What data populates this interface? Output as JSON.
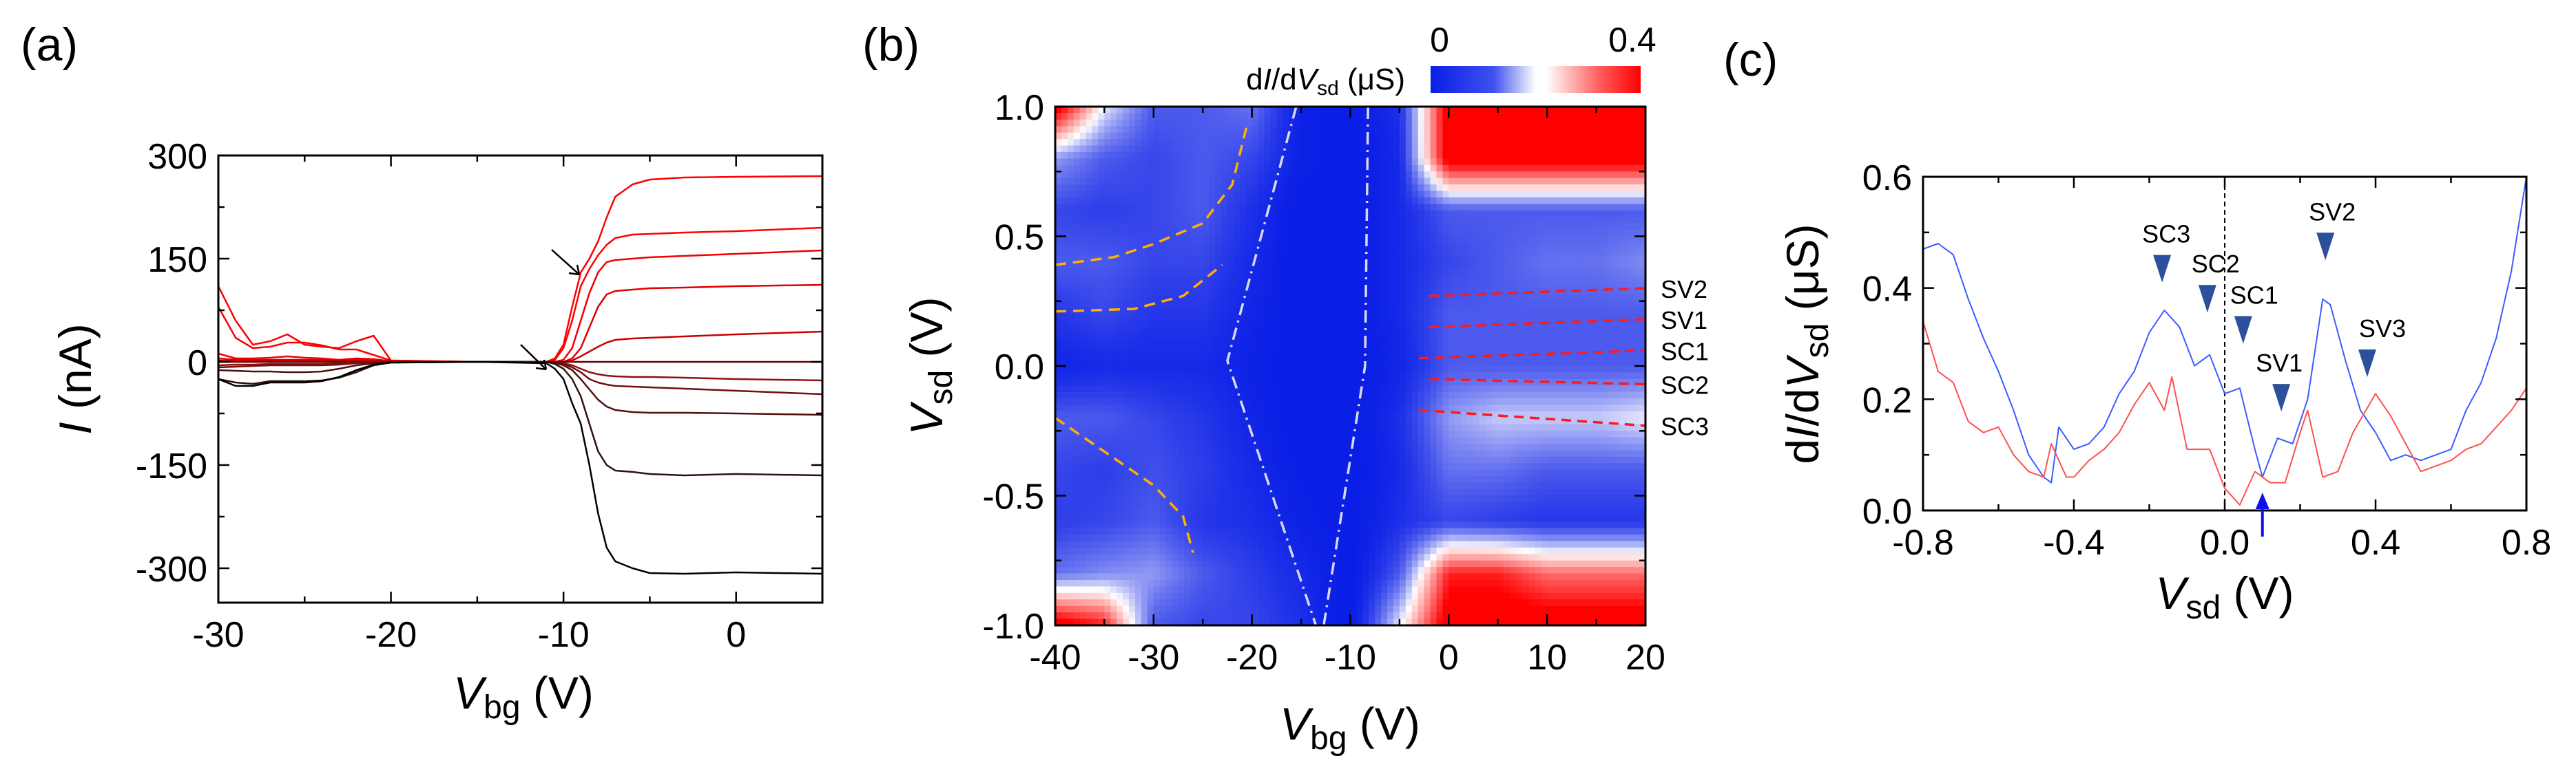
{
  "chart_data": [
    {
      "panel_label": "(a)",
      "type": "line",
      "xlabel": {
        "main": "V",
        "sub": "bg",
        "unit": " (V)"
      },
      "ylabel": {
        "main": "I",
        "unit": " (nA)"
      },
      "xlim": [
        -30,
        5
      ],
      "ylim": [
        -350,
        300
      ],
      "xticks": [
        -30,
        -20,
        -10,
        0
      ],
      "xtick_labels": [
        "-30",
        "-20",
        "-10",
        "0"
      ],
      "yticks": [
        -300,
        -150,
        0,
        150,
        300
      ],
      "ytick_labels": [
        "-300",
        "-150",
        "0",
        "150",
        "300"
      ],
      "x": [
        -30,
        -29,
        -28,
        -27,
        -26,
        -25,
        -24,
        -23,
        -22,
        -21,
        -20,
        -15,
        -11,
        -10.5,
        -10,
        -9.5,
        -9,
        -8.5,
        -8,
        -7.5,
        -7,
        -6,
        -5,
        -3,
        0,
        5
      ],
      "series": [
        {
          "name": "trace-1",
          "color": "#ff0000",
          "values": [
            110,
            60,
            25,
            30,
            40,
            25,
            22,
            20,
            30,
            38,
            2,
            0,
            0,
            5,
            25,
            80,
            130,
            150,
            175,
            210,
            240,
            258,
            265,
            268,
            269,
            270
          ]
        },
        {
          "name": "trace-2",
          "color": "#ff0000",
          "values": [
            80,
            35,
            20,
            22,
            28,
            28,
            24,
            18,
            18,
            10,
            2,
            0,
            0,
            3,
            20,
            60,
            110,
            135,
            155,
            170,
            180,
            185,
            186,
            188,
            190,
            195
          ]
        },
        {
          "name": "trace-3",
          "color": "#f00000",
          "values": [
            12,
            5,
            5,
            6,
            8,
            6,
            5,
            3,
            5,
            4,
            1,
            0,
            0,
            0,
            3,
            20,
            60,
            100,
            130,
            145,
            148,
            150,
            152,
            154,
            157,
            162
          ]
        },
        {
          "name": "trace-4",
          "color": "#e00000",
          "values": [
            5,
            3,
            3,
            3,
            3,
            3,
            3,
            2,
            3,
            2,
            1,
            0,
            0,
            0,
            0,
            5,
            20,
            50,
            80,
            98,
            103,
            105,
            107,
            108,
            110,
            112
          ]
        },
        {
          "name": "trace-5",
          "color": "#c80000",
          "values": [
            2,
            1,
            1,
            1,
            1,
            1,
            1,
            1,
            1,
            1,
            0,
            0,
            0,
            0,
            0,
            2,
            8,
            15,
            22,
            28,
            32,
            34,
            35,
            37,
            40,
            44
          ]
        },
        {
          "name": "trace-6",
          "color": "#600000",
          "values": [
            0,
            0,
            0,
            0,
            0,
            0,
            0,
            0,
            0,
            0,
            0,
            0,
            0,
            0,
            0,
            0,
            0,
            0,
            0,
            0,
            0,
            0,
            0,
            0,
            0,
            0
          ]
        },
        {
          "name": "trace-7",
          "color": "#901010",
          "values": [
            -5,
            -4,
            -4,
            -3,
            -3,
            -3,
            -3,
            -2,
            -1,
            0,
            0,
            0,
            0,
            0,
            -2,
            -5,
            -10,
            -15,
            -18,
            -20,
            -21,
            -22,
            -22,
            -23,
            -25,
            -27
          ]
        },
        {
          "name": "trace-8",
          "color": "#701010",
          "values": [
            -8,
            -7,
            -6,
            -5,
            -5,
            -5,
            -5,
            -4,
            -2,
            -1,
            0,
            0,
            0,
            0,
            -3,
            -8,
            -15,
            -25,
            -30,
            -33,
            -35,
            -36,
            -37,
            -39,
            -42,
            -47
          ]
        },
        {
          "name": "trace-9",
          "color": "#501010",
          "values": [
            -12,
            -13,
            -14,
            -14,
            -15,
            -15,
            -14,
            -10,
            -5,
            -2,
            0,
            0,
            0,
            -1,
            -5,
            -12,
            -25,
            -40,
            -55,
            -65,
            -70,
            -73,
            -74,
            -74,
            -75,
            -77
          ]
        },
        {
          "name": "trace-10",
          "color": "#301010",
          "values": [
            -25,
            -30,
            -32,
            -28,
            -28,
            -28,
            -27,
            -23,
            -15,
            -5,
            -1,
            0,
            0,
            -3,
            -10,
            -25,
            -50,
            -90,
            -130,
            -150,
            -158,
            -160,
            -163,
            -165,
            -163,
            -165
          ]
        },
        {
          "name": "trace-11",
          "color": "#000000",
          "values": [
            -25,
            -35,
            -35,
            -30,
            -30,
            -30,
            -28,
            -22,
            -12,
            -4,
            -1,
            0,
            -2,
            -10,
            -25,
            -60,
            -90,
            -150,
            -220,
            -270,
            -290,
            -300,
            -307,
            -308,
            -306,
            -308
          ]
        }
      ]
    },
    {
      "panel_label": "(b)",
      "type": "heatmap",
      "xlabel": {
        "main": "V",
        "sub": "bg",
        "unit": " (V)"
      },
      "ylabel": {
        "main": "V",
        "sub": "sd",
        "unit": " (V)"
      },
      "xlim": [
        -40,
        20
      ],
      "ylim": [
        -1.0,
        1.0
      ],
      "xticks": [
        -40,
        -30,
        -20,
        -10,
        0,
        10,
        20
      ],
      "xtick_labels": [
        "-40",
        "-30",
        "-20",
        "-10",
        "0",
        "10",
        "20"
      ],
      "yticks": [
        -1.0,
        -0.5,
        0.0,
        0.5,
        1.0
      ],
      "ytick_labels": [
        "-1.0",
        "-0.5",
        "0.0",
        "0.5",
        "1.0"
      ],
      "colorbar": {
        "label_pre": "d",
        "label_i": "I",
        "label_mid": "/d",
        "label_v": "V",
        "label_sub": "sd",
        "label_unit": " (μS)",
        "min_label": "0",
        "max_label": "0.4",
        "range": [
          0,
          0.4
        ],
        "colors": [
          "#0a1ee6",
          "#ffffff",
          "#ff0000"
        ]
      },
      "x": [
        -40,
        -35,
        -30,
        -25,
        -20,
        -15,
        -10,
        -5,
        0,
        5,
        10,
        15,
        20
      ],
      "y": [
        1.0,
        0.8,
        0.6,
        0.4,
        0.2,
        0.0,
        -0.2,
        -0.4,
        -0.6,
        -0.8,
        -1.0
      ],
      "z": [
        [
          0.4,
          0.2,
          0.1,
          0.1,
          0.12,
          0.02,
          0,
          0.05,
          0.4,
          0.4,
          0.4,
          0.4,
          0.4
        ],
        [
          0.15,
          0.1,
          0.08,
          0.1,
          0.08,
          0.02,
          0,
          0.04,
          0.4,
          0.4,
          0.4,
          0.4,
          0.4
        ],
        [
          0.08,
          0.07,
          0.08,
          0.1,
          0.05,
          0,
          0,
          0.04,
          0.1,
          0.1,
          0.1,
          0.1,
          0.1
        ],
        [
          0.1,
          0.1,
          0.08,
          0.08,
          0.04,
          0,
          0,
          0.04,
          0.08,
          0.1,
          0.12,
          0.12,
          0.14
        ],
        [
          0.06,
          0.08,
          0.06,
          0.06,
          0.03,
          0,
          0,
          0.04,
          0.1,
          0.1,
          0.1,
          0.1,
          0.1
        ],
        [
          0.03,
          0.04,
          0.04,
          0.04,
          0.02,
          0,
          0,
          0.03,
          0.1,
          0.1,
          0.1,
          0.1,
          0.1
        ],
        [
          0.1,
          0.1,
          0.08,
          0.06,
          0.03,
          0,
          0,
          0.05,
          0.15,
          0.18,
          0.18,
          0.18,
          0.2
        ],
        [
          0.08,
          0.07,
          0.09,
          0.07,
          0.04,
          0.01,
          0,
          0.04,
          0.12,
          0.12,
          0.1,
          0.1,
          0.1
        ],
        [
          0.07,
          0.08,
          0.1,
          0.06,
          0.05,
          0.02,
          0,
          0.05,
          0.08,
          0.07,
          0.06,
          0.06,
          0.06
        ],
        [
          0.12,
          0.14,
          0.15,
          0.1,
          0.07,
          0.04,
          0,
          0.1,
          0.35,
          0.35,
          0.3,
          0.3,
          0.3
        ],
        [
          0.4,
          0.35,
          0.1,
          0.08,
          0.08,
          0.05,
          0,
          0.2,
          0.4,
          0.4,
          0.4,
          0.4,
          0.4
        ]
      ],
      "guides": [
        {
          "name": "orange-guide-1",
          "color": "#ffb000",
          "dash": "dash",
          "points": [
            [
              -40,
              0.39
            ],
            [
              -34,
              0.42
            ],
            [
              -30,
              0.47
            ],
            [
              -25,
              0.55
            ],
            [
              -22,
              0.7
            ],
            [
              -20.5,
              0.93
            ]
          ]
        },
        {
          "name": "orange-guide-2",
          "color": "#ffb000",
          "dash": "dash",
          "points": [
            [
              -40,
              0.21
            ],
            [
              -32,
              0.22
            ],
            [
              -27,
              0.27
            ],
            [
              -23,
              0.39
            ]
          ]
        },
        {
          "name": "orange-guide-3",
          "color": "#ffb000",
          "dash": "dash",
          "points": [
            [
              -40,
              -0.2
            ],
            [
              -35,
              -0.33
            ],
            [
              -30,
              -0.46
            ],
            [
              -27,
              -0.58
            ],
            [
              -26,
              -0.72
            ]
          ]
        },
        {
          "name": "white-guide-left",
          "color": "#d8d8f0",
          "dash": "dashdot",
          "points": [
            [
              -15.5,
              1.0
            ],
            [
              -22.5,
              0.02
            ],
            [
              -13.5,
              -1.0
            ]
          ]
        },
        {
          "name": "white-guide-right",
          "color": "#d8d8f0",
          "dash": "dashdot",
          "points": [
            [
              -8.2,
              1.0
            ],
            [
              -8.5,
              0.0
            ],
            [
              -12.7,
              -1.0
            ]
          ]
        }
      ],
      "lines": [
        {
          "label": "SV2",
          "color": "#ff1a1a",
          "points": [
            [
              -2,
              0.27
            ],
            [
              20,
              0.3
            ]
          ]
        },
        {
          "label": "SV1",
          "color": "#ff1a1a",
          "points": [
            [
              -2,
              0.15
            ],
            [
              20,
              0.18
            ]
          ]
        },
        {
          "label": "SC1",
          "color": "#ff1a1a",
          "points": [
            [
              -3,
              0.03
            ],
            [
              20,
              0.06
            ]
          ]
        },
        {
          "label": "SC2",
          "color": "#ff1a1a",
          "points": [
            [
              -2,
              -0.05
            ],
            [
              20,
              -0.07
            ]
          ]
        },
        {
          "label": "SC3",
          "color": "#ff1a1a",
          "points": [
            [
              -3,
              -0.17
            ],
            [
              20,
              -0.23
            ]
          ]
        }
      ]
    },
    {
      "panel_label": "(c)",
      "type": "line",
      "xlabel": {
        "main": "V",
        "sub": "sd",
        "unit": " (V)"
      },
      "ylabel": {
        "pre": "d",
        "main": "I",
        "mid": "/d",
        "v": "V",
        "sub": "sd",
        "unit": " (μS)"
      },
      "xlim": [
        -0.8,
        0.8
      ],
      "ylim": [
        0,
        0.6
      ],
      "xticks": [
        -0.8,
        -0.4,
        0.0,
        0.4,
        0.8
      ],
      "xtick_labels": [
        "-0.8",
        "-0.4",
        "0.0",
        "0.4",
        "0.8"
      ],
      "yticks": [
        0.0,
        0.2,
        0.4,
        0.6
      ],
      "ytick_labels": [
        "0.0",
        "0.2",
        "0.4",
        "0.6"
      ],
      "series": [
        {
          "name": "blue-trace",
          "color": "#3a5cff",
          "x": [
            -0.8,
            -0.76,
            -0.72,
            -0.68,
            -0.64,
            -0.6,
            -0.56,
            -0.52,
            -0.48,
            -0.46,
            -0.44,
            -0.4,
            -0.36,
            -0.32,
            -0.28,
            -0.24,
            -0.2,
            -0.16,
            -0.12,
            -0.08,
            -0.04,
            0.0,
            0.04,
            0.08,
            0.1,
            0.14,
            0.18,
            0.22,
            0.26,
            0.28,
            0.32,
            0.36,
            0.4,
            0.44,
            0.48,
            0.52,
            0.56,
            0.6,
            0.64,
            0.68,
            0.72,
            0.76,
            0.8
          ],
          "values": [
            0.47,
            0.48,
            0.46,
            0.38,
            0.31,
            0.25,
            0.18,
            0.1,
            0.06,
            0.05,
            0.15,
            0.11,
            0.12,
            0.15,
            0.21,
            0.25,
            0.32,
            0.36,
            0.33,
            0.26,
            0.28,
            0.21,
            0.22,
            0.11,
            0.06,
            0.13,
            0.12,
            0.2,
            0.38,
            0.37,
            0.27,
            0.18,
            0.14,
            0.09,
            0.1,
            0.09,
            0.1,
            0.11,
            0.18,
            0.23,
            0.31,
            0.43,
            0.6
          ]
        },
        {
          "name": "red-trace",
          "color": "#ff5050",
          "x": [
            -0.8,
            -0.76,
            -0.72,
            -0.68,
            -0.64,
            -0.6,
            -0.56,
            -0.52,
            -0.48,
            -0.46,
            -0.42,
            -0.4,
            -0.36,
            -0.32,
            -0.28,
            -0.24,
            -0.2,
            -0.16,
            -0.14,
            -0.1,
            -0.04,
            0.0,
            0.04,
            0.08,
            0.12,
            0.16,
            0.2,
            0.22,
            0.26,
            0.3,
            0.34,
            0.4,
            0.44,
            0.48,
            0.52,
            0.56,
            0.6,
            0.64,
            0.68,
            0.72,
            0.76,
            0.8
          ],
          "values": [
            0.34,
            0.25,
            0.23,
            0.16,
            0.14,
            0.15,
            0.1,
            0.07,
            0.06,
            0.12,
            0.06,
            0.06,
            0.09,
            0.11,
            0.14,
            0.19,
            0.23,
            0.18,
            0.24,
            0.11,
            0.11,
            0.04,
            0.01,
            0.07,
            0.05,
            0.05,
            0.14,
            0.18,
            0.06,
            0.07,
            0.14,
            0.21,
            0.17,
            0.12,
            0.07,
            0.08,
            0.09,
            0.11,
            0.12,
            0.15,
            0.18,
            0.22
          ]
        }
      ],
      "markers": [
        {
          "label": "SC3",
          "x": -0.166,
          "y": 0.41
        },
        {
          "label": "SC2",
          "x": -0.046,
          "y": 0.356
        },
        {
          "label": "SC1",
          "x": 0.049,
          "y": 0.3
        },
        {
          "label": "SV1",
          "x": 0.15,
          "y": 0.178
        },
        {
          "label": "SV2",
          "x": 0.267,
          "y": 0.45
        },
        {
          "label": "SV3",
          "x": 0.378,
          "y": 0.24
        }
      ],
      "marker_color": "#2e4f9a",
      "arrow": {
        "x": 0.1,
        "color": "#1010ee"
      },
      "reference_line_x": 0.0
    }
  ]
}
